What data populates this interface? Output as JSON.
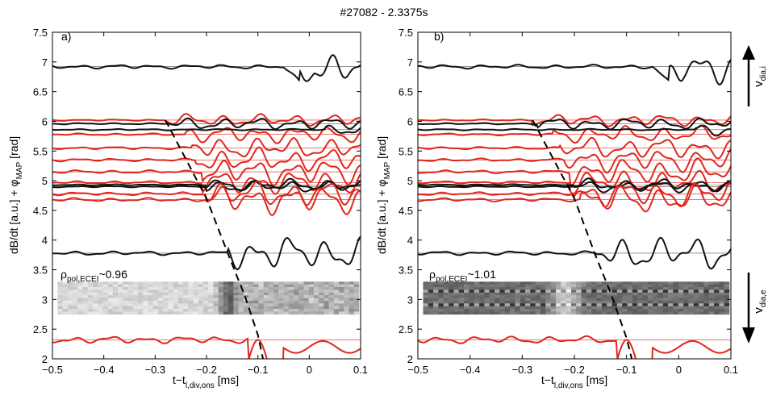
{
  "chart_data": {
    "type": "line",
    "title": "#27082 - 2.3375s",
    "xlabel_main": "t−t",
    "xlabel_sub": "l,div,ons",
    "xlabel_unit": " [ms]",
    "ylabel_main": "dB/dt [a.u.] + φ",
    "ylabel_sub": "MAP",
    "ylabel_unit": " [rad]",
    "xlim": [
      -0.5,
      0.1
    ],
    "ylim": [
      2,
      7.5
    ],
    "xticks": [
      "−0.5",
      "−0.4",
      "−0.3",
      "−0.2",
      "−0.1",
      "0",
      "0.1"
    ],
    "xtick_values": [
      -0.5,
      -0.4,
      -0.3,
      -0.2,
      -0.1,
      0,
      0.1
    ],
    "yticks": [
      "2",
      "2.5",
      "3",
      "3.5",
      "4",
      "4.5",
      "5",
      "5.5",
      "6",
      "6.5",
      "7",
      "7.5"
    ],
    "ytick_values": [
      2,
      2.5,
      3,
      3.5,
      4,
      4.5,
      5,
      5.5,
      6,
      6.5,
      7,
      7.5
    ],
    "panels": [
      {
        "label": "a)",
        "rho_main": "ρ",
        "rho_sub": "pol,ECEI",
        "rho_value": "~0.96",
        "ece_image_yrange": [
          2.75,
          3.3
        ],
        "dashed_line": [
          [
            -0.28,
            6.02
          ],
          [
            -0.2,
            4.7
          ],
          [
            -0.155,
            3.7
          ],
          [
            -0.125,
            3.05
          ],
          [
            -0.1,
            2.4
          ],
          [
            -0.09,
            2.0
          ]
        ]
      },
      {
        "label": "b)",
        "rho_main": "ρ",
        "rho_sub": "pol,ECEI",
        "rho_value": "~1.01",
        "ece_image_yrange": [
          2.75,
          3.3
        ],
        "dashed_line": [
          [
            -0.28,
            6.02
          ],
          [
            -0.2,
            4.7
          ],
          [
            -0.16,
            3.75
          ],
          [
            -0.13,
            3.1
          ],
          [
            -0.1,
            2.35
          ],
          [
            -0.09,
            2.0
          ]
        ]
      }
    ],
    "series": [
      {
        "name": "black-6.92",
        "color": "#111111",
        "baseline": 6.92,
        "amp": 0.28,
        "event_x": -0.02
      },
      {
        "name": "red-6.02",
        "color": "#e0271e",
        "baseline": 6.02,
        "amp": 0.1,
        "event_x": -0.28
      },
      {
        "name": "black-5.96",
        "color": "#111111",
        "baseline": 5.96,
        "amp": 0.1,
        "event_x": -0.27
      },
      {
        "name": "red-5.78",
        "color": "#e0271e",
        "baseline": 5.78,
        "amp": 0.14,
        "event_x": -0.24
      },
      {
        "name": "black-5.86",
        "color": "#111111",
        "baseline": 5.86,
        "amp": 0.1,
        "event_x": 0.03
      },
      {
        "name": "red-5.55",
        "color": "#e0271e",
        "baseline": 5.55,
        "amp": 0.18,
        "event_x": -0.23
      },
      {
        "name": "red-5.35",
        "color": "#e0271e",
        "baseline": 5.35,
        "amp": 0.2,
        "event_x": -0.22
      },
      {
        "name": "red-5.15",
        "color": "#e0271e",
        "baseline": 5.15,
        "amp": 0.22,
        "event_x": -0.21
      },
      {
        "name": "red-4.97",
        "color": "#e0271e",
        "baseline": 4.97,
        "amp": 0.2,
        "event_x": -0.21
      },
      {
        "name": "black-4.93",
        "color": "#111111",
        "baseline": 4.93,
        "amp": 0.1,
        "event_x": -0.2
      },
      {
        "name": "black-4.9",
        "color": "#111111",
        "baseline": 4.9,
        "amp": 0.1,
        "event_x": -0.2
      },
      {
        "name": "red-4.78",
        "color": "#e0271e",
        "baseline": 4.78,
        "amp": 0.22,
        "event_x": -0.2
      },
      {
        "name": "red-4.68",
        "color": "#e0271e",
        "baseline": 4.68,
        "amp": 0.24,
        "event_x": -0.19
      },
      {
        "name": "black-3.78",
        "color": "#111111",
        "baseline": 3.78,
        "amp": 0.28,
        "event_x": -0.16
      },
      {
        "name": "red-2.32",
        "color": "#e0271e",
        "baseline": 2.32,
        "amp": 0.5,
        "event_x": -0.1
      }
    ],
    "right_annotations": {
      "top_main": "v",
      "top_sub": "dia,i",
      "bottom_main": "v",
      "bottom_sub": "dia,e"
    }
  }
}
